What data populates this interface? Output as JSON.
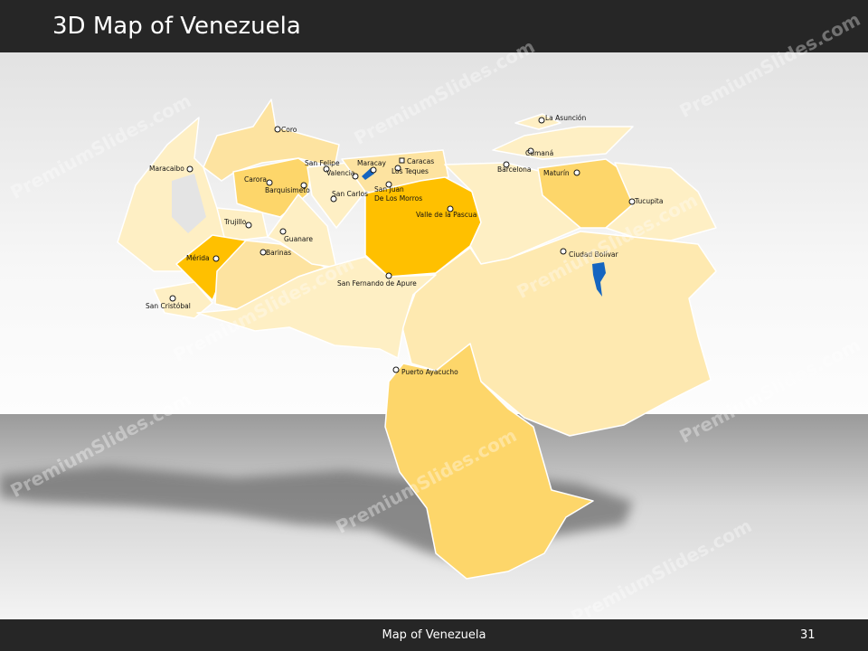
{
  "slide": {
    "title": "3D Map of Venezuela",
    "footer_title": "Map of Venezuela",
    "page_number": "31",
    "watermark": "PremiumSlides.com"
  },
  "colors": {
    "header": "#262626",
    "pale": "#FEEFC4",
    "light": "#FDE3A0",
    "medium": "#FDD66A",
    "deep": "#FFC000",
    "water": "#1565C0"
  },
  "cities": [
    {
      "name": "Coro"
    },
    {
      "name": "Maracaibo"
    },
    {
      "name": "San Felipe"
    },
    {
      "name": "Maracay"
    },
    {
      "name": "Caracas",
      "capital": true
    },
    {
      "name": "Los Teques"
    },
    {
      "name": "Valencia"
    },
    {
      "name": "Carora"
    },
    {
      "name": "Barquisimeto"
    },
    {
      "name": "San Carlos"
    },
    {
      "name": "San Juan"
    },
    {
      "name": "De Los Morros"
    },
    {
      "name": "Valle de la Pascua"
    },
    {
      "name": "Trujillo"
    },
    {
      "name": "Guanare"
    },
    {
      "name": "Barinas"
    },
    {
      "name": "Mérida"
    },
    {
      "name": "San Fernando de Apure"
    },
    {
      "name": "San Cristóbal"
    },
    {
      "name": "La Asunción"
    },
    {
      "name": "Cumaná"
    },
    {
      "name": "Barcelona"
    },
    {
      "name": "Maturín"
    },
    {
      "name": "Tucupita"
    },
    {
      "name": "Ciudad Bolívar"
    },
    {
      "name": "Puerto Ayacucho"
    }
  ]
}
